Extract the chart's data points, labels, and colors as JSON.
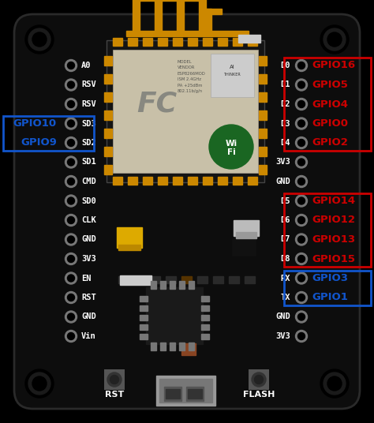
{
  "bg_color": "#000000",
  "board_color": "#0d0d0d",
  "antenna_color": "#CC8800",
  "gold_pad_color": "#CC8800",
  "red_box_color": "#CC0000",
  "blue_box_color": "#1155CC",
  "white_text_color": "#FFFFFF",
  "red_text_color": "#CC0000",
  "blue_text_color": "#1155CC",
  "pin_gray": "#888888",
  "left_pins": [
    "A0",
    "RSV",
    "RSV",
    "SD3",
    "SD2",
    "SD1",
    "CMD",
    "SD0",
    "CLK",
    "GND",
    "3V3",
    "EN",
    "RST",
    "GND",
    "Vin"
  ],
  "right_pins": [
    "D0",
    "D1",
    "D2",
    "D3",
    "D4",
    "3V3",
    "GND",
    "D5",
    "D6",
    "D7",
    "D8",
    "RX",
    "TX",
    "GND",
    "3V3"
  ],
  "gpio_top": [
    "GPIO16",
    "GPIO5",
    "GPIO4",
    "GPIO0",
    "GPIO2"
  ],
  "gpio_bot": [
    "GPIO14",
    "GPIO12",
    "GPIO13",
    "GPIO15"
  ],
  "gpio_rxtx": [
    "GPIO3",
    "GPIO1"
  ],
  "gpio_left": [
    "GPIO10",
    "GPIO9"
  ],
  "bottom_labels": [
    "RST",
    "FLASH"
  ]
}
